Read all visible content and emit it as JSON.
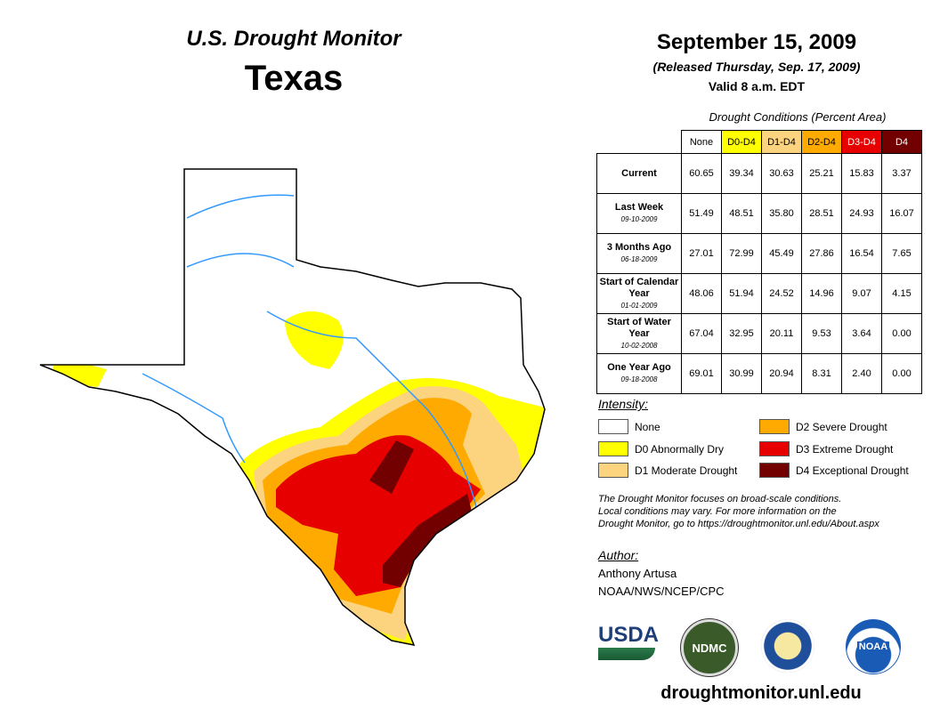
{
  "header": {
    "product": "U.S. Drought Monitor",
    "state": "Texas"
  },
  "date": {
    "title": "September 15, 2009",
    "released": "(Released Thursday, Sep. 17, 2009)",
    "valid": "Valid 8 a.m. EDT"
  },
  "table": {
    "caption": "Drought Conditions (Percent Area)",
    "columns": [
      "None",
      "D0-D4",
      "D1-D4",
      "D2-D4",
      "D3-D4",
      "D4"
    ],
    "column_colors": [
      "#ffffff",
      "#ffff00",
      "#fcd37f",
      "#ffaa00",
      "#e60000",
      "#730000"
    ],
    "rows": [
      {
        "label": "Current",
        "date": "",
        "values": [
          "60.65",
          "39.34",
          "30.63",
          "25.21",
          "15.83",
          "3.37"
        ]
      },
      {
        "label": "Last Week",
        "date": "09-10-2009",
        "values": [
          "51.49",
          "48.51",
          "35.80",
          "28.51",
          "24.93",
          "16.07"
        ]
      },
      {
        "label": "3 Months Ago",
        "date": "06-18-2009",
        "values": [
          "27.01",
          "72.99",
          "45.49",
          "27.86",
          "16.54",
          "7.65"
        ]
      },
      {
        "label": "Start of Calendar Year",
        "date": "01-01-2009",
        "values": [
          "48.06",
          "51.94",
          "24.52",
          "14.96",
          "9.07",
          "4.15"
        ]
      },
      {
        "label": "Start of Water Year",
        "date": "10-02-2008",
        "values": [
          "67.04",
          "32.95",
          "20.11",
          "9.53",
          "3.64",
          "0.00"
        ]
      },
      {
        "label": "One Year Ago",
        "date": "09-18-2008",
        "values": [
          "69.01",
          "30.99",
          "20.94",
          "8.31",
          "2.40",
          "0.00"
        ]
      }
    ]
  },
  "legend": {
    "title": "Intensity:",
    "items": [
      {
        "label": "None",
        "color": "#ffffff"
      },
      {
        "label": "D0 Abnormally Dry",
        "color": "#ffff00"
      },
      {
        "label": "D1 Moderate Drought",
        "color": "#fcd37f"
      },
      {
        "label": "D2 Severe Drought",
        "color": "#ffaa00"
      },
      {
        "label": "D3 Extreme Drought",
        "color": "#e60000"
      },
      {
        "label": "D4 Exceptional Drought",
        "color": "#730000"
      }
    ]
  },
  "note": [
    "The Drought Monitor focuses on broad-scale conditions.",
    "Local conditions may vary. For more information on the",
    "Drought Monitor, go to https://droughtmonitor.unl.edu/About.aspx"
  ],
  "author": {
    "title": "Author:",
    "name": "Anthony Artusa",
    "org": "NOAA/NWS/NCEP/CPC"
  },
  "logos": {
    "usda": "USDA",
    "ndmc": "NDMC",
    "noaa": "NOAA"
  },
  "footer_url": "droughtmonitor.unl.edu"
}
